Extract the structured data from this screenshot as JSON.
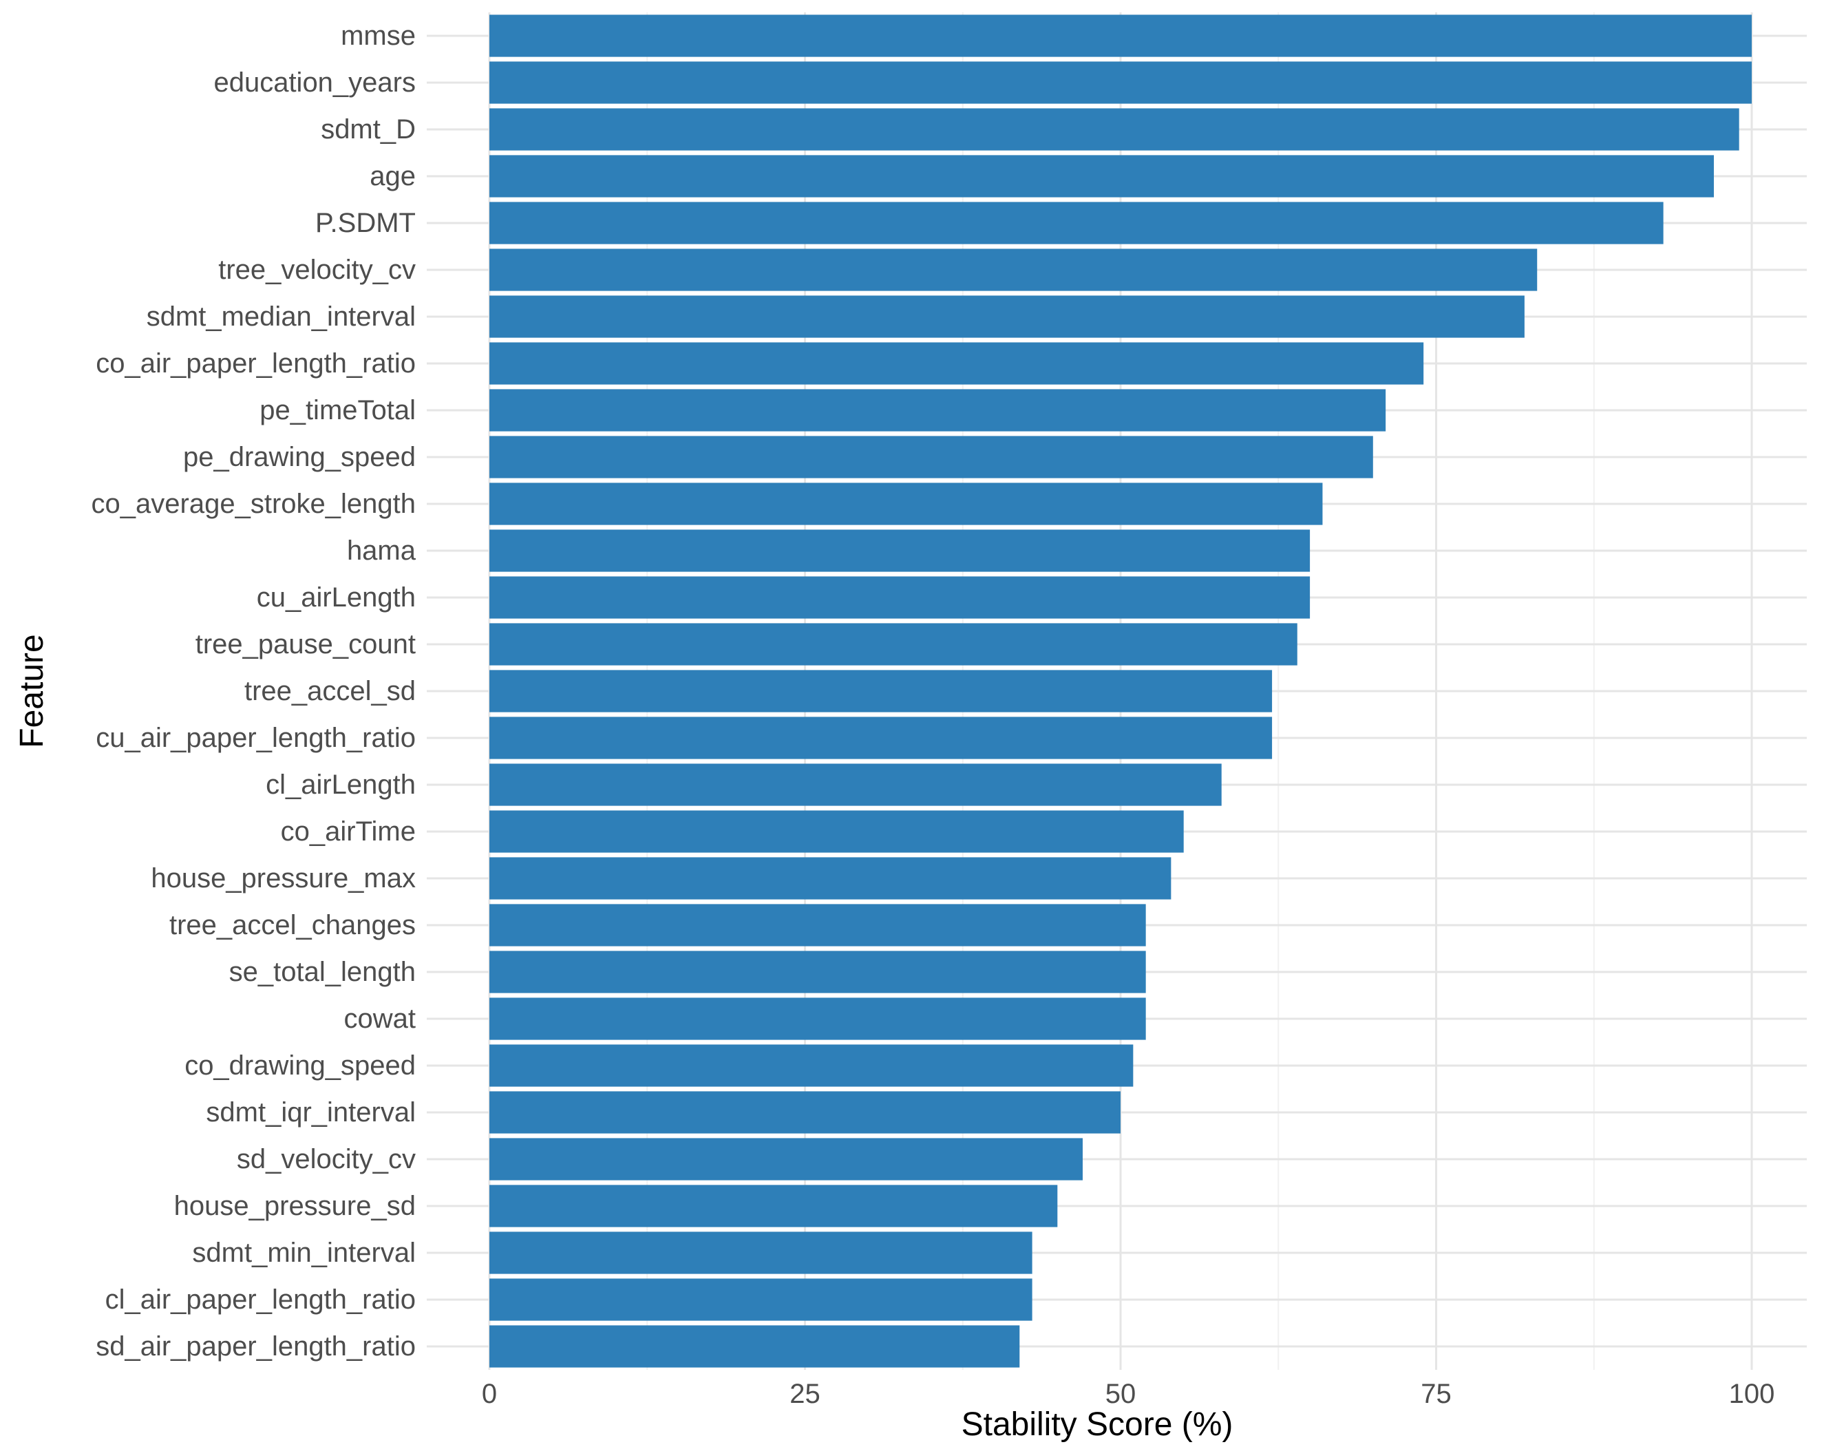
{
  "chart_data": {
    "type": "bar",
    "orientation": "horizontal",
    "title": "",
    "xlabel": "Stability Score (%)",
    "ylabel": "Feature",
    "xlim": [
      0,
      105
    ],
    "x_ticks": [
      0,
      25,
      50,
      75,
      100
    ],
    "grid": true,
    "bar_color": "#2e7fb8",
    "categories": [
      "mmse",
      "education_years",
      "sdmt_D",
      "age",
      "P.SDMT",
      "tree_velocity_cv",
      "sdmt_median_interval",
      "co_air_paper_length_ratio",
      "pe_timeTotal",
      "pe_drawing_speed",
      "co_average_stroke_length",
      "hama",
      "cu_airLength",
      "tree_pause_count",
      "tree_accel_sd",
      "cu_air_paper_length_ratio",
      "cl_airLength",
      "co_airTime",
      "house_pressure_max",
      "tree_accel_changes",
      "se_total_length",
      "cowat",
      "co_drawing_speed",
      "sdmt_iqr_interval",
      "sd_velocity_cv",
      "house_pressure_sd",
      "sdmt_min_interval",
      "cl_air_paper_length_ratio",
      "sd_air_paper_length_ratio"
    ],
    "values": [
      100,
      100,
      99,
      97,
      93,
      83,
      82,
      74,
      71,
      70,
      66,
      65,
      65,
      64,
      62,
      62,
      58,
      55,
      54,
      52,
      52,
      52,
      51,
      50,
      47,
      45,
      43,
      43,
      42
    ]
  }
}
